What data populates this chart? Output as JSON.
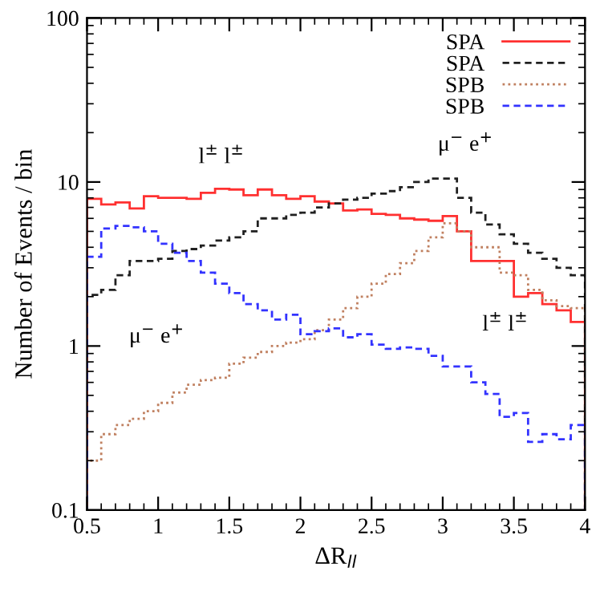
{
  "chart_data": {
    "type": "histogram",
    "xlabel": "ΔR$_{ll}$",
    "ylabel": "Number of Events / bin",
    "bins": [
      0.5,
      0.6,
      0.7,
      0.8,
      0.9,
      1.0,
      1.1,
      1.2,
      1.3,
      1.4,
      1.5,
      1.6,
      1.7,
      1.8,
      1.9,
      2.0,
      2.1,
      2.2,
      2.3,
      2.4,
      2.5,
      2.6,
      2.7,
      2.8,
      2.9,
      3.0,
      3.1,
      3.2,
      3.3,
      3.4,
      3.5,
      3.6,
      3.7,
      3.8,
      3.9,
      4.0
    ],
    "series": [
      {
        "name": "SPA",
        "color": "#ff3030",
        "line_style": "solid",
        "values": [
          7.9,
          7.3,
          7.5,
          6.9,
          8.2,
          8.0,
          8.0,
          7.9,
          8.6,
          9.1,
          9.0,
          8.3,
          9.0,
          8.3,
          7.9,
          8.2,
          7.6,
          7.4,
          6.7,
          6.8,
          6.4,
          6.3,
          6.0,
          5.9,
          5.8,
          6.2,
          5.0,
          3.3,
          3.3,
          3.3,
          2.0,
          2.1,
          1.8,
          1.65,
          1.4
        ]
      },
      {
        "name": "SPA",
        "color": "#202020",
        "line_style": "dashed",
        "values": [
          2.05,
          2.2,
          2.7,
          3.3,
          3.3,
          3.4,
          3.8,
          3.9,
          4.1,
          4.4,
          4.6,
          5.0,
          6.0,
          6.0,
          6.3,
          6.5,
          7.0,
          7.4,
          7.8,
          8.0,
          8.5,
          8.8,
          9.3,
          10.0,
          10.5,
          10.5,
          8.0,
          6.5,
          5.5,
          4.8,
          4.2,
          3.7,
          3.4,
          3.0,
          2.7
        ]
      },
      {
        "name": "SPB",
        "color": "#c08060",
        "line_style": "dotted",
        "values": [
          0.2,
          0.29,
          0.33,
          0.36,
          0.4,
          0.45,
          0.52,
          0.58,
          0.62,
          0.64,
          0.78,
          0.85,
          0.92,
          1.0,
          1.05,
          1.1,
          1.25,
          1.45,
          1.7,
          2.0,
          2.4,
          2.75,
          3.2,
          3.8,
          4.6,
          5.6,
          5.0,
          4.0,
          4.0,
          2.8,
          2.7,
          2.2,
          1.9,
          1.75,
          1.7
        ]
      },
      {
        "name": "SPB",
        "color": "#3333ff",
        "line_style": "dashed",
        "values": [
          3.5,
          5.2,
          5.4,
          5.3,
          5.0,
          4.2,
          3.7,
          3.3,
          2.8,
          2.4,
          2.1,
          1.8,
          1.65,
          1.45,
          1.55,
          1.18,
          1.23,
          1.28,
          1.13,
          1.18,
          1.02,
          0.96,
          0.98,
          0.96,
          0.87,
          0.75,
          0.75,
          0.6,
          0.51,
          0.37,
          0.39,
          0.26,
          0.29,
          0.27,
          0.33
        ]
      }
    ],
    "annotations": [
      "l$^{±}$ l$^{±}$",
      "μ$^{−}$ e$^{+}$",
      "μ$^{−}$ e$^{+}$",
      "l$^{±}$ l$^{±}$"
    ],
    "log": "y",
    "xlim": [
      0.5,
      4
    ],
    "ylim": [
      0.1,
      100
    ],
    "xticks": [
      0.5,
      1,
      1.5,
      2,
      2.5,
      3,
      3.5,
      4
    ],
    "yticks": [
      0.1,
      1,
      10,
      100
    ],
    "grid": false,
    "legend": "top right"
  }
}
